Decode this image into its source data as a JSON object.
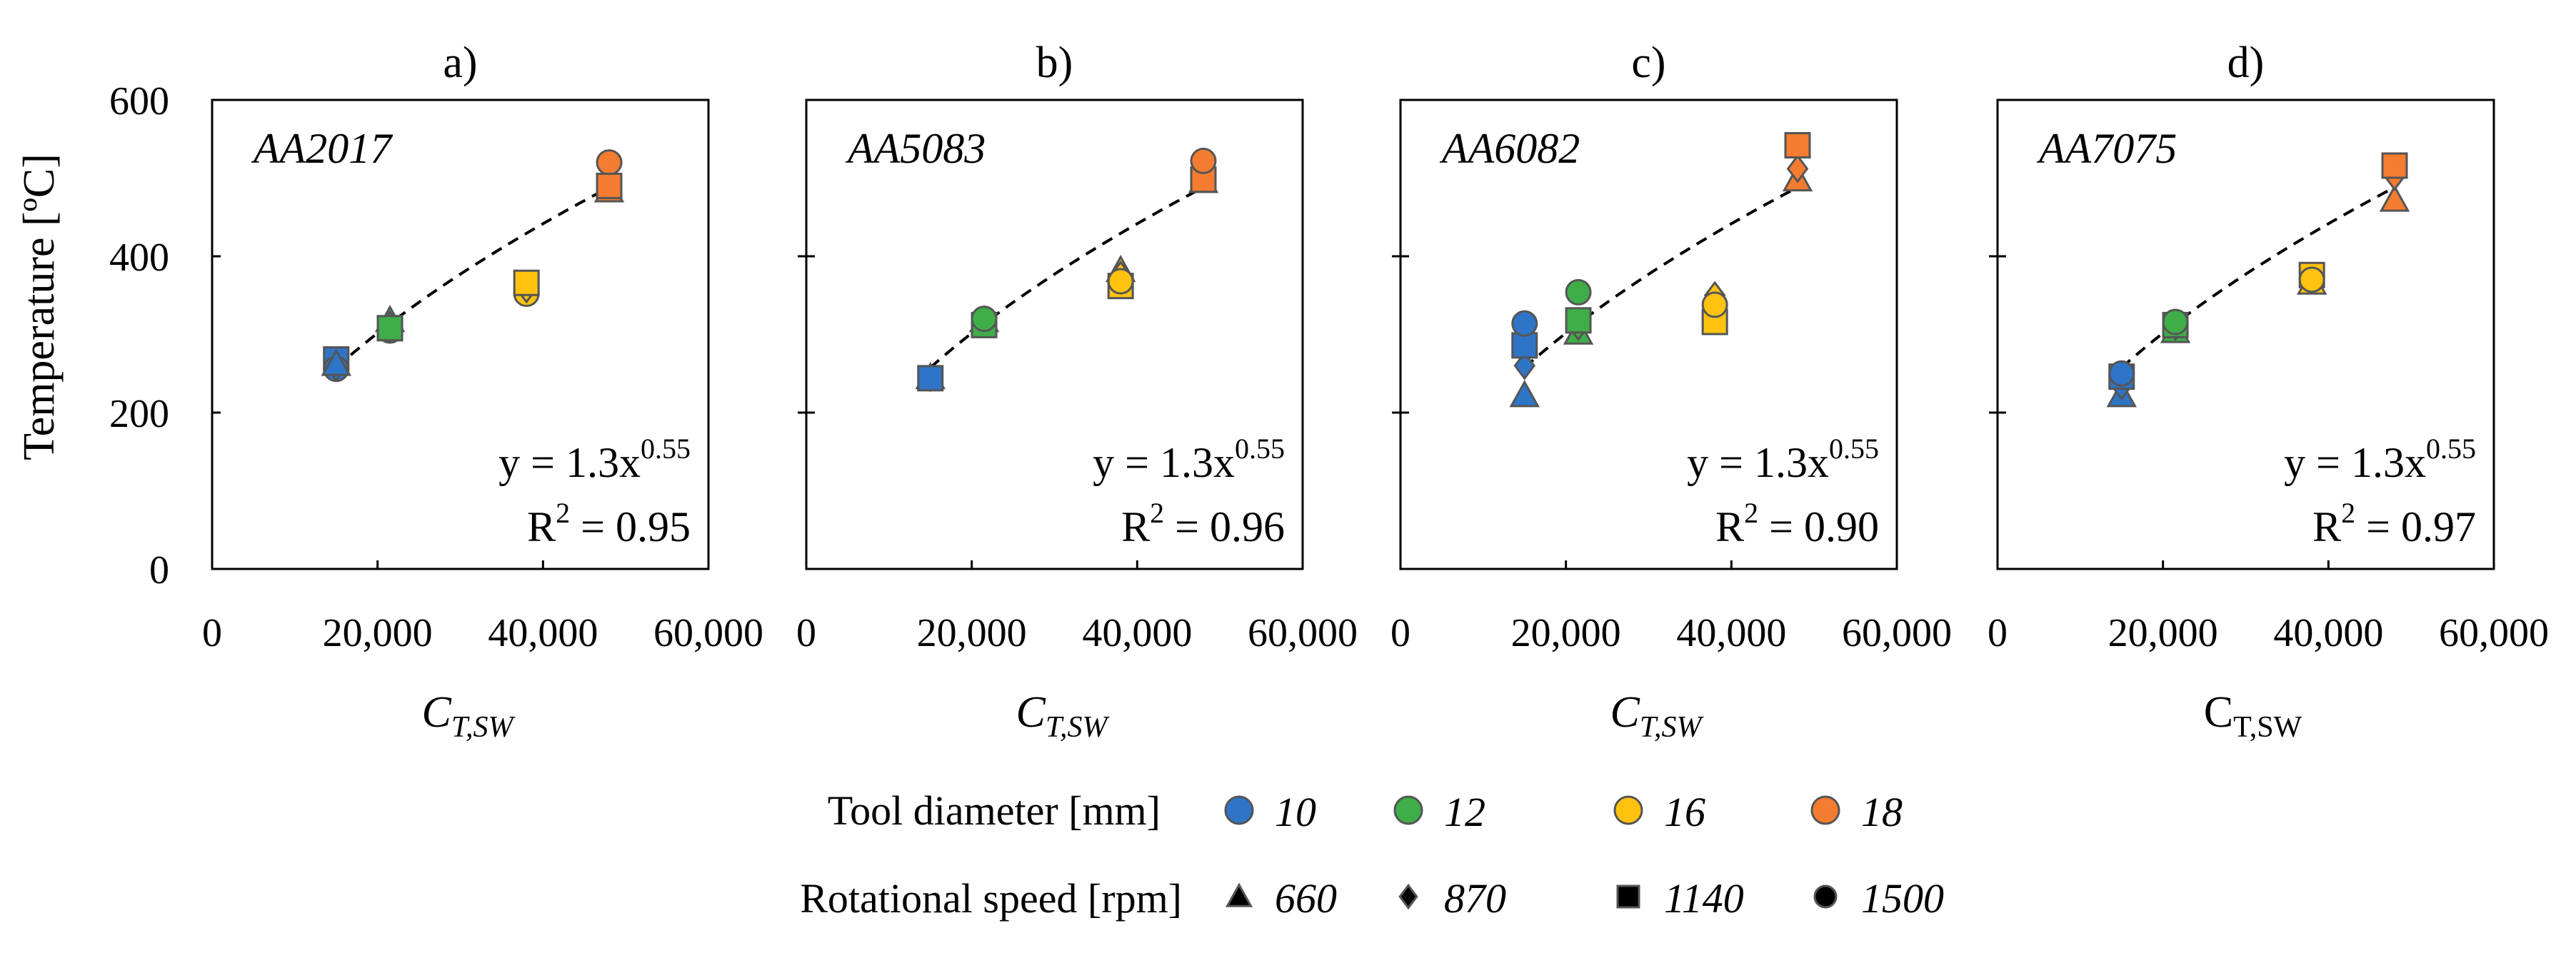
{
  "figure": {
    "ylabel": "Temperature [ºC]",
    "legend": {
      "diameter_title": "Tool diameter [mm]",
      "diameters": [
        {
          "label": "10",
          "color": "#2E75C8"
        },
        {
          "label": "12",
          "color": "#3FAE49"
        },
        {
          "label": "16",
          "color": "#FFC20E"
        },
        {
          "label": "18",
          "color": "#F47C30"
        }
      ],
      "speed_title": "Rotational speed [rpm]",
      "speeds": [
        {
          "label": "660",
          "marker": "triangle"
        },
        {
          "label": "870",
          "marker": "diamond"
        },
        {
          "label": "1140",
          "marker": "square"
        },
        {
          "label": "1500",
          "marker": "circle"
        }
      ]
    }
  },
  "chart_data": [
    {
      "type": "scatter",
      "panel_label": "a)",
      "title": "AA2017",
      "xlabel": "C",
      "xlabel_sub": "T,SW",
      "xlabel_italic": true,
      "ylabel": "Temperature [ºC]",
      "xlim": [
        0,
        60000
      ],
      "ylim": [
        0,
        600
      ],
      "xticks": [
        "0",
        "20,000",
        "40,000",
        "60,000"
      ],
      "yticks": [
        "0",
        "200",
        "400",
        "600"
      ],
      "equation": "y = 1.3x",
      "equation_exp": "0.55",
      "r2_prefix": "R",
      "r2_sup": "2",
      "r2_value": " = 0.95",
      "fit": {
        "a": 1.3,
        "b": 0.55,
        "x_range": [
          15000,
          48000
        ]
      },
      "points": [
        {
          "x": 15000,
          "y": 268,
          "d": "10",
          "rpm": "1140"
        },
        {
          "x": 15000,
          "y": 256,
          "d": "10",
          "rpm": "1500"
        },
        {
          "x": 15000,
          "y": 258,
          "d": "10",
          "rpm": "870"
        },
        {
          "x": 15000,
          "y": 262,
          "d": "10",
          "rpm": "660"
        },
        {
          "x": 21500,
          "y": 318,
          "d": "12",
          "rpm": "660"
        },
        {
          "x": 21500,
          "y": 312,
          "d": "12",
          "rpm": "870"
        },
        {
          "x": 21500,
          "y": 305,
          "d": "12",
          "rpm": "1500"
        },
        {
          "x": 21500,
          "y": 308,
          "d": "12",
          "rpm": "1140"
        },
        {
          "x": 38000,
          "y": 352,
          "d": "16",
          "rpm": "1500"
        },
        {
          "x": 38000,
          "y": 358,
          "d": "16",
          "rpm": "870"
        },
        {
          "x": 38000,
          "y": 366,
          "d": "16",
          "rpm": "1140"
        },
        {
          "x": 48000,
          "y": 520,
          "d": "18",
          "rpm": "1500"
        },
        {
          "x": 48000,
          "y": 488,
          "d": "18",
          "rpm": "870"
        },
        {
          "x": 48000,
          "y": 484,
          "d": "18",
          "rpm": "660"
        },
        {
          "x": 48000,
          "y": 490,
          "d": "18",
          "rpm": "1140"
        }
      ]
    },
    {
      "type": "scatter",
      "panel_label": "b)",
      "title": "AA5083",
      "xlabel": "C",
      "xlabel_sub": "T,SW",
      "xlabel_italic": true,
      "ylabel": "Temperature [ºC]",
      "xlim": [
        0,
        60000
      ],
      "ylim": [
        0,
        600
      ],
      "xticks": [
        "0",
        "20,000",
        "40,000",
        "60,000"
      ],
      "yticks": [
        "0",
        "200",
        "400",
        "600"
      ],
      "equation": "y = 1.3x",
      "equation_exp": "0.55",
      "r2_prefix": "R",
      "r2_sup": "2",
      "r2_value": " = 0.96",
      "fit": {
        "a": 1.3,
        "b": 0.55,
        "x_range": [
          15000,
          48000
        ]
      },
      "points": [
        {
          "x": 15000,
          "y": 245,
          "d": "10",
          "rpm": "660"
        },
        {
          "x": 15000,
          "y": 245,
          "d": "10",
          "rpm": "870"
        },
        {
          "x": 15000,
          "y": 244,
          "d": "10",
          "rpm": "1140"
        },
        {
          "x": 21500,
          "y": 318,
          "d": "12",
          "rpm": "660"
        },
        {
          "x": 21500,
          "y": 315,
          "d": "12",
          "rpm": "870"
        },
        {
          "x": 21500,
          "y": 312,
          "d": "12",
          "rpm": "1140"
        },
        {
          "x": 21500,
          "y": 320,
          "d": "12",
          "rpm": "1500"
        },
        {
          "x": 38000,
          "y": 382,
          "d": "16",
          "rpm": "660"
        },
        {
          "x": 38000,
          "y": 376,
          "d": "16",
          "rpm": "870"
        },
        {
          "x": 38000,
          "y": 362,
          "d": "16",
          "rpm": "1140"
        },
        {
          "x": 38000,
          "y": 368,
          "d": "16",
          "rpm": "1500"
        },
        {
          "x": 48000,
          "y": 496,
          "d": "18",
          "rpm": "660"
        },
        {
          "x": 48000,
          "y": 502,
          "d": "18",
          "rpm": "870"
        },
        {
          "x": 48000,
          "y": 498,
          "d": "18",
          "rpm": "1140"
        },
        {
          "x": 48000,
          "y": 522,
          "d": "18",
          "rpm": "1500"
        }
      ]
    },
    {
      "type": "scatter",
      "panel_label": "c)",
      "title": "AA6082",
      "xlabel": "C",
      "xlabel_sub": "T,SW",
      "xlabel_italic": true,
      "ylabel": "Temperature [ºC]",
      "xlim": [
        0,
        60000
      ],
      "ylim": [
        0,
        600
      ],
      "xticks": [
        "0",
        "20,000",
        "40,000",
        "60,000"
      ],
      "yticks": [
        "0",
        "200",
        "400",
        "600"
      ],
      "equation": "y = 1.3x",
      "equation_exp": "0.55",
      "r2_prefix": "R",
      "r2_sup": "2",
      "r2_value": " = 0.90",
      "fit": {
        "a": 1.3,
        "b": 0.55,
        "x_range": [
          15000,
          48000
        ]
      },
      "points": [
        {
          "x": 15000,
          "y": 222,
          "d": "10",
          "rpm": "660"
        },
        {
          "x": 15000,
          "y": 260,
          "d": "10",
          "rpm": "870"
        },
        {
          "x": 15000,
          "y": 286,
          "d": "10",
          "rpm": "1140"
        },
        {
          "x": 15000,
          "y": 314,
          "d": "10",
          "rpm": "1500"
        },
        {
          "x": 21500,
          "y": 302,
          "d": "12",
          "rpm": "660"
        },
        {
          "x": 21500,
          "y": 310,
          "d": "12",
          "rpm": "870"
        },
        {
          "x": 21500,
          "y": 318,
          "d": "12",
          "rpm": "1140"
        },
        {
          "x": 21500,
          "y": 354,
          "d": "12",
          "rpm": "1500"
        },
        {
          "x": 38000,
          "y": 350,
          "d": "16",
          "rpm": "870"
        },
        {
          "x": 38000,
          "y": 316,
          "d": "16",
          "rpm": "1140"
        },
        {
          "x": 38000,
          "y": 338,
          "d": "16",
          "rpm": "1500"
        },
        {
          "x": 48000,
          "y": 498,
          "d": "18",
          "rpm": "660"
        },
        {
          "x": 48000,
          "y": 512,
          "d": "18",
          "rpm": "870"
        },
        {
          "x": 48000,
          "y": 542,
          "d": "18",
          "rpm": "1140"
        }
      ]
    },
    {
      "type": "scatter",
      "panel_label": "d)",
      "title": "AA7075",
      "xlabel": "C",
      "xlabel_sub": "T,SW",
      "xlabel_italic": false,
      "ylabel": "Temperature [ºC]",
      "xlim": [
        0,
        60000
      ],
      "ylim": [
        0,
        600
      ],
      "xticks": [
        "0",
        "20,000",
        "40,000",
        "60,000"
      ],
      "yticks": [
        "0",
        "200",
        "400",
        "600"
      ],
      "equation": "y = 1.3x",
      "equation_exp": "0.55",
      "r2_prefix": "R",
      "r2_sup": "2",
      "r2_value": " = 0.97",
      "fit": {
        "a": 1.3,
        "b": 0.55,
        "x_range": [
          15000,
          48000
        ]
      },
      "points": [
        {
          "x": 15000,
          "y": 222,
          "d": "10",
          "rpm": "660"
        },
        {
          "x": 15000,
          "y": 234,
          "d": "10",
          "rpm": "870"
        },
        {
          "x": 15000,
          "y": 246,
          "d": "10",
          "rpm": "1140"
        },
        {
          "x": 15000,
          "y": 250,
          "d": "10",
          "rpm": "1500"
        },
        {
          "x": 21500,
          "y": 304,
          "d": "12",
          "rpm": "660"
        },
        {
          "x": 21500,
          "y": 310,
          "d": "12",
          "rpm": "870"
        },
        {
          "x": 21500,
          "y": 312,
          "d": "12",
          "rpm": "1140"
        },
        {
          "x": 21500,
          "y": 316,
          "d": "12",
          "rpm": "1500"
        },
        {
          "x": 38000,
          "y": 366,
          "d": "16",
          "rpm": "660"
        },
        {
          "x": 38000,
          "y": 372,
          "d": "16",
          "rpm": "870"
        },
        {
          "x": 38000,
          "y": 376,
          "d": "16",
          "rpm": "1140"
        },
        {
          "x": 38000,
          "y": 370,
          "d": "16",
          "rpm": "1500"
        },
        {
          "x": 48000,
          "y": 472,
          "d": "18",
          "rpm": "660"
        },
        {
          "x": 48000,
          "y": 502,
          "d": "18",
          "rpm": "870"
        },
        {
          "x": 48000,
          "y": 516,
          "d": "18",
          "rpm": "1140"
        }
      ]
    }
  ]
}
